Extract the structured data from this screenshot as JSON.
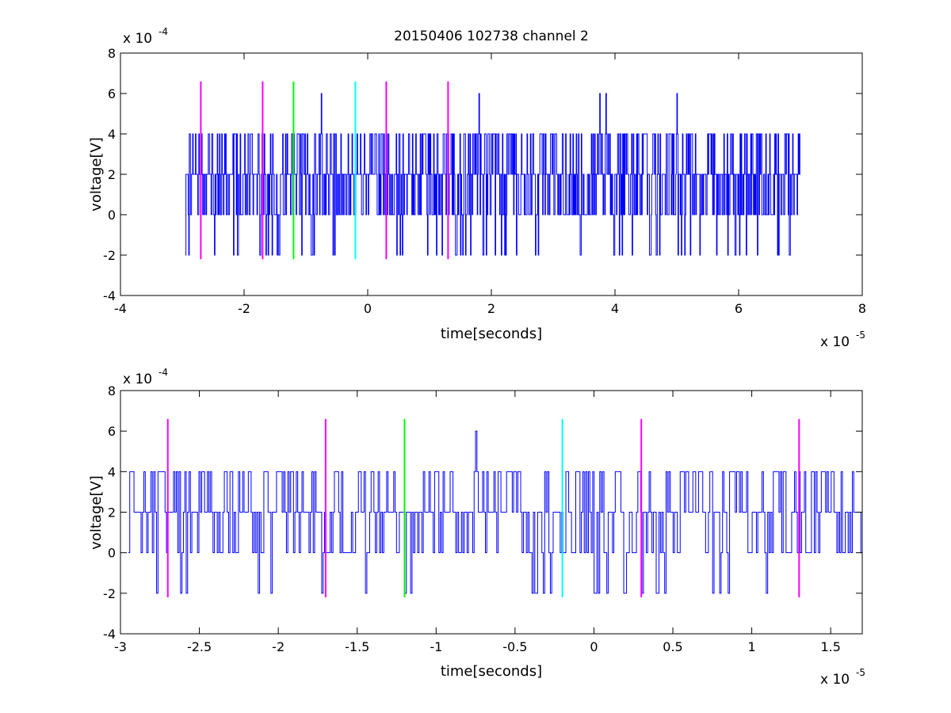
{
  "chart_data": [
    {
      "type": "line",
      "title": "20150406 102738 channel 2",
      "xlabel": "time[seconds]",
      "ylabel": "voltage[V]",
      "x_exponent": "x 10",
      "x_exponent_power": "-5",
      "y_exponent": "x 10",
      "y_exponent_power": "-4",
      "xlim": [
        -4,
        8
      ],
      "ylim": [
        -4,
        8
      ],
      "xticks": [
        "-4",
        "-2",
        "0",
        "2",
        "4",
        "6",
        "8"
      ],
      "yticks": [
        "-4",
        "-2",
        "0",
        "2",
        "4",
        "6",
        "8"
      ],
      "xtick_values": [
        -4,
        -2,
        0,
        2,
        4,
        6,
        8
      ],
      "ytick_values": [
        -4,
        -2,
        0,
        2,
        4,
        6,
        8
      ],
      "grid": false,
      "series": [
        {
          "color": "#0000ff",
          "x_range": [
            -2.95,
            7.0
          ],
          "level_set": [
            -2,
            0,
            2,
            4,
            6
          ],
          "peaks": [
            [
              -0.75,
              6
            ],
            [
              1.8,
              6
            ],
            [
              3.75,
              6
            ],
            [
              3.85,
              6
            ],
            [
              5.0,
              6
            ]
          ]
        }
      ],
      "markers": [
        {
          "x": -2.7,
          "color": "#ff00ff",
          "y_range": [
            -2.2,
            6.6
          ]
        },
        {
          "x": -1.7,
          "color": "#ff00ff",
          "y_range": [
            -2.2,
            6.6
          ]
        },
        {
          "x": -1.2,
          "color": "#00ff00",
          "y_range": [
            -2.2,
            6.6
          ]
        },
        {
          "x": -0.2,
          "color": "#00ffff",
          "y_range": [
            -2.2,
            6.6
          ]
        },
        {
          "x": 0.3,
          "color": "#ff00ff",
          "y_range": [
            -2.2,
            6.6
          ]
        },
        {
          "x": 1.3,
          "color": "#ff00ff",
          "y_range": [
            -2.2,
            6.6
          ]
        }
      ]
    },
    {
      "type": "line",
      "title": "",
      "xlabel": "time[seconds]",
      "ylabel": "voltage[V]",
      "x_exponent": "x 10",
      "x_exponent_power": "-5",
      "y_exponent": "x 10",
      "y_exponent_power": "-4",
      "xlim": [
        -3.0,
        1.7
      ],
      "ylim": [
        -4,
        8
      ],
      "xticks": [
        "-3",
        "-2.5",
        "-2",
        "-1.5",
        "-1",
        "-0.5",
        "0",
        "0.5",
        "1",
        "1.5"
      ],
      "yticks": [
        "-4",
        "-2",
        "0",
        "2",
        "4",
        "6",
        "8"
      ],
      "xtick_values": [
        -3,
        -2.5,
        -2,
        -1.5,
        -1,
        -0.5,
        0,
        0.5,
        1,
        1.5
      ],
      "ytick_values": [
        -4,
        -2,
        0,
        2,
        4,
        6,
        8
      ],
      "grid": false,
      "series": [
        {
          "color": "#0000ff",
          "x_range": [
            -2.95,
            1.7
          ],
          "level_set": [
            -2,
            0,
            2,
            4,
            6
          ],
          "peaks": [
            [
              -0.75,
              6
            ]
          ]
        }
      ],
      "markers": [
        {
          "x": -2.7,
          "color": "#ff00ff",
          "y_range": [
            -2.2,
            6.6
          ]
        },
        {
          "x": -1.7,
          "color": "#ff00ff",
          "y_range": [
            -2.2,
            6.6
          ]
        },
        {
          "x": -1.2,
          "color": "#00ff00",
          "y_range": [
            -2.2,
            6.6
          ]
        },
        {
          "x": -0.2,
          "color": "#00ffff",
          "y_range": [
            -2.2,
            6.6
          ]
        },
        {
          "x": 0.3,
          "color": "#ff00ff",
          "y_range": [
            -2.2,
            6.6
          ]
        },
        {
          "x": 1.3,
          "color": "#ff00ff",
          "y_range": [
            -2.2,
            6.6
          ]
        }
      ]
    }
  ]
}
